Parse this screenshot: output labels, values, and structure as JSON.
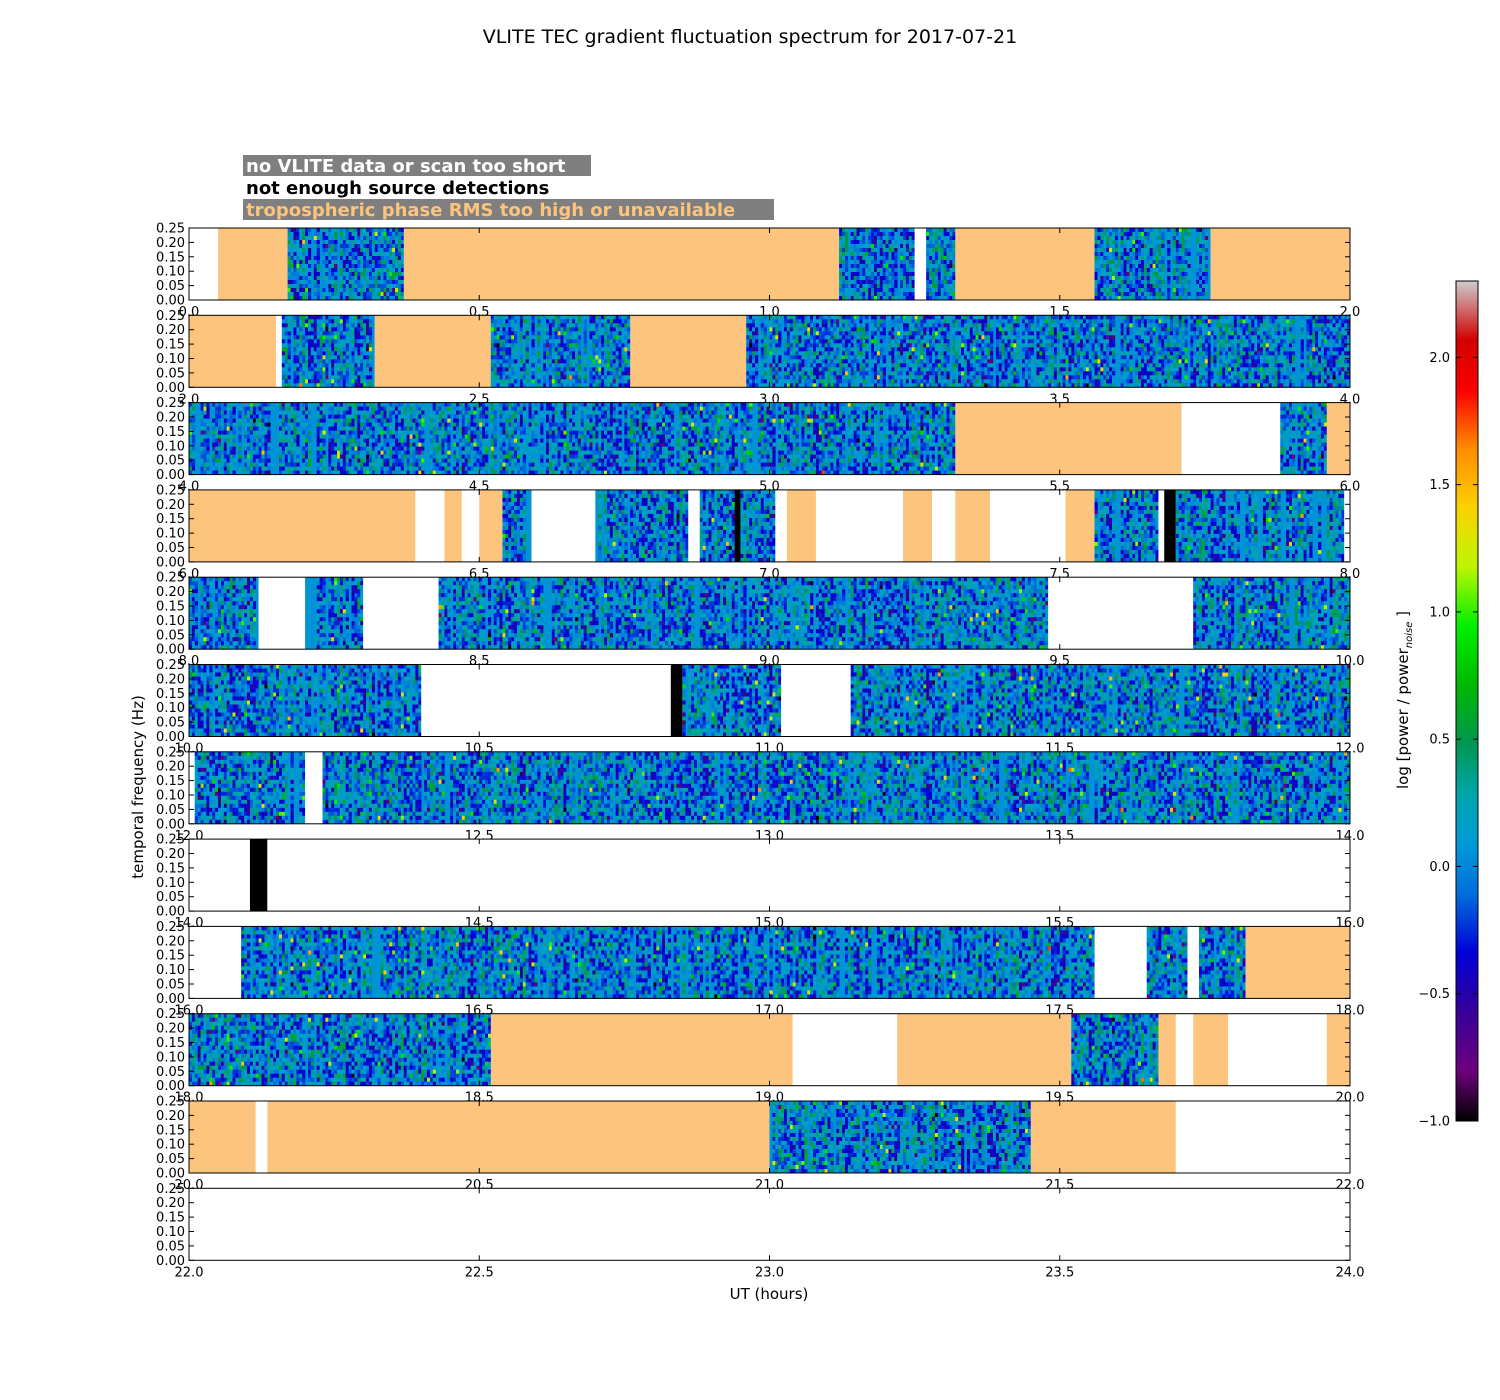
{
  "chart_data": {
    "type": "heatmap",
    "title": "VLITE TEC gradient fluctuation spectrum for 2017-07-21",
    "xlabel": "UT (hours)",
    "ylabel": "temporal frequency (Hz)",
    "colorbar": {
      "label": "log [power / power",
      "label_sub": "noise",
      "label_end": "]",
      "range": [
        -1.0,
        2.3
      ],
      "ticks": [
        "−1.0",
        "−0.5",
        "0.0",
        "0.5",
        "1.0",
        "1.5",
        "2.0"
      ],
      "tick_values": [
        -1.0,
        -0.5,
        0.0,
        0.5,
        1.0,
        1.5,
        2.0
      ],
      "colormap": "spectral"
    },
    "y_ticks": [
      "0.00",
      "0.05",
      "0.10",
      "0.15",
      "0.20",
      "0.25"
    ],
    "y_tick_values": [
      0.0,
      0.05,
      0.1,
      0.15,
      0.2,
      0.25
    ],
    "ylim": [
      0,
      0.25
    ],
    "legend": [
      {
        "label": "no VLITE data or scan too short",
        "text_color": "#ffffff",
        "bg": "#7f7f7f"
      },
      {
        "label": "not enough source detections",
        "text_color": "#000000",
        "bg": "#ffffff"
      },
      {
        "label": "tropospheric phase RMS too high or unavailable",
        "text_color": "#fcc47c",
        "bg": "#7f7f7f"
      }
    ],
    "flag_colors": {
      "none": "#ffffff",
      "nodet": "#000000",
      "trop": "#fdc47d",
      "data": "#0094d6"
    },
    "panels": [
      {
        "xlim": [
          0.0,
          2.0
        ],
        "xticks": [
          "0.0",
          "0.5",
          "1.0",
          "1.5",
          "2.0"
        ],
        "xtick_values": [
          0.0,
          0.5,
          1.0,
          1.5,
          2.0
        ],
        "segments": [
          [
            0.0,
            0.05,
            "none"
          ],
          [
            0.05,
            0.17,
            "trop"
          ],
          [
            0.17,
            0.37,
            "data"
          ],
          [
            0.37,
            1.12,
            "trop"
          ],
          [
            1.12,
            1.25,
            "data"
          ],
          [
            1.25,
            1.27,
            "none"
          ],
          [
            1.27,
            1.32,
            "data"
          ],
          [
            1.32,
            1.56,
            "trop"
          ],
          [
            1.56,
            1.76,
            "data"
          ],
          [
            1.76,
            2.0,
            "trop"
          ]
        ]
      },
      {
        "xlim": [
          2.0,
          4.0
        ],
        "xticks": [
          "2.0",
          "2.5",
          "3.0",
          "3.5",
          "4.0"
        ],
        "xtick_values": [
          2.0,
          2.5,
          3.0,
          3.5,
          4.0
        ],
        "segments": [
          [
            2.0,
            2.15,
            "trop"
          ],
          [
            2.15,
            2.16,
            "none"
          ],
          [
            2.16,
            2.32,
            "data"
          ],
          [
            2.32,
            2.52,
            "trop"
          ],
          [
            2.52,
            2.76,
            "data"
          ],
          [
            2.76,
            2.96,
            "trop"
          ],
          [
            2.96,
            4.0,
            "data"
          ]
        ]
      },
      {
        "xlim": [
          4.0,
          6.0
        ],
        "xticks": [
          "4.0",
          "4.5",
          "5.0",
          "5.5",
          "6.0"
        ],
        "xtick_values": [
          4.0,
          4.5,
          5.0,
          5.5,
          6.0
        ],
        "segments": [
          [
            4.0,
            5.32,
            "data"
          ],
          [
            5.32,
            5.71,
            "trop"
          ],
          [
            5.71,
            5.88,
            "none"
          ],
          [
            5.88,
            5.96,
            "data"
          ],
          [
            5.96,
            6.0,
            "trop"
          ]
        ]
      },
      {
        "xlim": [
          6.0,
          8.0
        ],
        "xticks": [
          "6.0",
          "6.5",
          "7.0",
          "7.5",
          "8.0"
        ],
        "xtick_values": [
          6.0,
          6.5,
          7.0,
          7.5,
          8.0
        ],
        "segments": [
          [
            6.0,
            6.39,
            "trop"
          ],
          [
            6.39,
            6.44,
            "none"
          ],
          [
            6.44,
            6.47,
            "trop"
          ],
          [
            6.47,
            6.5,
            "none"
          ],
          [
            6.5,
            6.54,
            "trop"
          ],
          [
            6.54,
            6.59,
            "data"
          ],
          [
            6.59,
            6.7,
            "none"
          ],
          [
            6.7,
            6.86,
            "data"
          ],
          [
            6.86,
            6.88,
            "none"
          ],
          [
            6.88,
            6.94,
            "data"
          ],
          [
            6.94,
            6.95,
            "nodet"
          ],
          [
            6.95,
            7.01,
            "data"
          ],
          [
            7.01,
            7.03,
            "none"
          ],
          [
            7.03,
            7.08,
            "trop"
          ],
          [
            7.08,
            7.23,
            "none"
          ],
          [
            7.23,
            7.28,
            "trop"
          ],
          [
            7.28,
            7.32,
            "none"
          ],
          [
            7.32,
            7.38,
            "trop"
          ],
          [
            7.38,
            7.51,
            "none"
          ],
          [
            7.51,
            7.56,
            "trop"
          ],
          [
            7.56,
            7.67,
            "data"
          ],
          [
            7.67,
            7.68,
            "none"
          ],
          [
            7.68,
            7.7,
            "nodet"
          ],
          [
            7.7,
            7.99,
            "data"
          ],
          [
            7.99,
            8.0,
            "none"
          ]
        ]
      },
      {
        "xlim": [
          8.0,
          10.0
        ],
        "xticks": [
          "8.0",
          "8.5",
          "9.0",
          "9.5",
          "10.0"
        ],
        "xtick_values": [
          8.0,
          8.5,
          9.0,
          9.5,
          10.0
        ],
        "segments": [
          [
            8.0,
            8.12,
            "data"
          ],
          [
            8.12,
            8.2,
            "none"
          ],
          [
            8.2,
            8.3,
            "data"
          ],
          [
            8.3,
            8.43,
            "none"
          ],
          [
            8.43,
            9.48,
            "data"
          ],
          [
            9.48,
            9.73,
            "none"
          ],
          [
            9.73,
            10.0,
            "data"
          ]
        ]
      },
      {
        "xlim": [
          10.0,
          12.0
        ],
        "xticks": [
          "10.0",
          "10.5",
          "11.0",
          "11.5",
          "12.0"
        ],
        "xtick_values": [
          10.0,
          10.5,
          11.0,
          11.5,
          12.0
        ],
        "segments": [
          [
            10.0,
            10.4,
            "data"
          ],
          [
            10.4,
            10.83,
            "none"
          ],
          [
            10.83,
            10.85,
            "nodet"
          ],
          [
            10.85,
            11.02,
            "data"
          ],
          [
            11.02,
            11.14,
            "none"
          ],
          [
            11.14,
            12.0,
            "data"
          ]
        ]
      },
      {
        "xlim": [
          12.0,
          14.0
        ],
        "xticks": [
          "12.0",
          "12.5",
          "13.0",
          "13.5",
          "14.0"
        ],
        "xtick_values": [
          12.0,
          12.5,
          13.0,
          13.5,
          14.0
        ],
        "segments": [
          [
            12.0,
            12.01,
            "none"
          ],
          [
            12.01,
            12.2,
            "data"
          ],
          [
            12.2,
            12.23,
            "none"
          ],
          [
            12.23,
            14.0,
            "data"
          ]
        ]
      },
      {
        "xlim": [
          14.0,
          16.0
        ],
        "xticks": [
          "14.0",
          "14.5",
          "15.0",
          "15.5",
          "16.0"
        ],
        "xtick_values": [
          14.0,
          14.5,
          15.0,
          15.5,
          16.0
        ],
        "segments": [
          [
            14.0,
            14.105,
            "none"
          ],
          [
            14.105,
            14.135,
            "nodet"
          ],
          [
            14.135,
            16.0,
            "none"
          ]
        ]
      },
      {
        "xlim": [
          16.0,
          18.0
        ],
        "xticks": [
          "16.0",
          "16.5",
          "17.0",
          "17.5",
          "18.0"
        ],
        "xtick_values": [
          16.0,
          16.5,
          17.0,
          17.5,
          18.0
        ],
        "segments": [
          [
            16.0,
            16.09,
            "none"
          ],
          [
            16.09,
            17.56,
            "data"
          ],
          [
            17.56,
            17.65,
            "none"
          ],
          [
            17.65,
            17.72,
            "data"
          ],
          [
            17.72,
            17.74,
            "none"
          ],
          [
            17.74,
            17.82,
            "data"
          ],
          [
            17.82,
            18.0,
            "trop"
          ]
        ]
      },
      {
        "xlim": [
          18.0,
          20.0
        ],
        "xticks": [
          "18.0",
          "18.5",
          "19.0",
          "19.5",
          "20.0"
        ],
        "xtick_values": [
          18.0,
          18.5,
          19.0,
          19.5,
          20.0
        ],
        "segments": [
          [
            18.0,
            18.52,
            "data"
          ],
          [
            18.52,
            19.04,
            "trop"
          ],
          [
            19.04,
            19.22,
            "none"
          ],
          [
            19.22,
            19.52,
            "trop"
          ],
          [
            19.52,
            19.67,
            "data"
          ],
          [
            19.67,
            19.7,
            "trop"
          ],
          [
            19.7,
            19.73,
            "none"
          ],
          [
            19.73,
            19.79,
            "trop"
          ],
          [
            19.79,
            19.96,
            "none"
          ],
          [
            19.96,
            20.0,
            "trop"
          ]
        ]
      },
      {
        "xlim": [
          20.0,
          22.0
        ],
        "xticks": [
          "20.0",
          "20.5",
          "21.0",
          "21.5",
          "22.0"
        ],
        "xtick_values": [
          20.0,
          20.5,
          21.0,
          21.5,
          22.0
        ],
        "segments": [
          [
            20.0,
            20.115,
            "trop"
          ],
          [
            20.115,
            20.135,
            "none"
          ],
          [
            20.135,
            21.0,
            "trop"
          ],
          [
            21.0,
            21.45,
            "data"
          ],
          [
            21.45,
            21.7,
            "trop"
          ],
          [
            21.7,
            22.0,
            "none"
          ]
        ]
      },
      {
        "xlim": [
          22.0,
          24.0
        ],
        "xticks": [
          "22.0",
          "22.5",
          "23.0",
          "23.5",
          "24.0"
        ],
        "xtick_values": [
          22.0,
          22.5,
          23.0,
          23.5,
          24.0
        ],
        "segments": [
          [
            22.0,
            24.0,
            "none"
          ]
        ]
      }
    ]
  }
}
